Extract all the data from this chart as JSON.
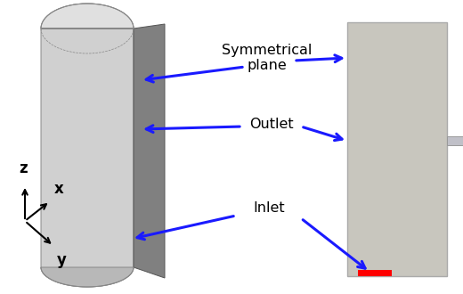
{
  "bg_color": "#ffffff",
  "arrow_color": "#1a1aff",
  "pipe_light_face": "#d0d0d0",
  "pipe_mid_face": "#b0b0b0",
  "pipe_dark_face": "#808080",
  "pipe_top_face": "#e0e0e0",
  "rect_fill": "#c8c6be",
  "rect_edge": "#aaaaaa",
  "red_color": "#ff0000",
  "tube_color": "#c0c0c8",
  "labels": {
    "sym_plane": "Symmetrical\nplane",
    "outlet": "Outlet",
    "inlet": "Inlet",
    "z": "z",
    "x": "x",
    "y": "y"
  },
  "label_fontsize": 11.5,
  "axis_fontsize": 12
}
